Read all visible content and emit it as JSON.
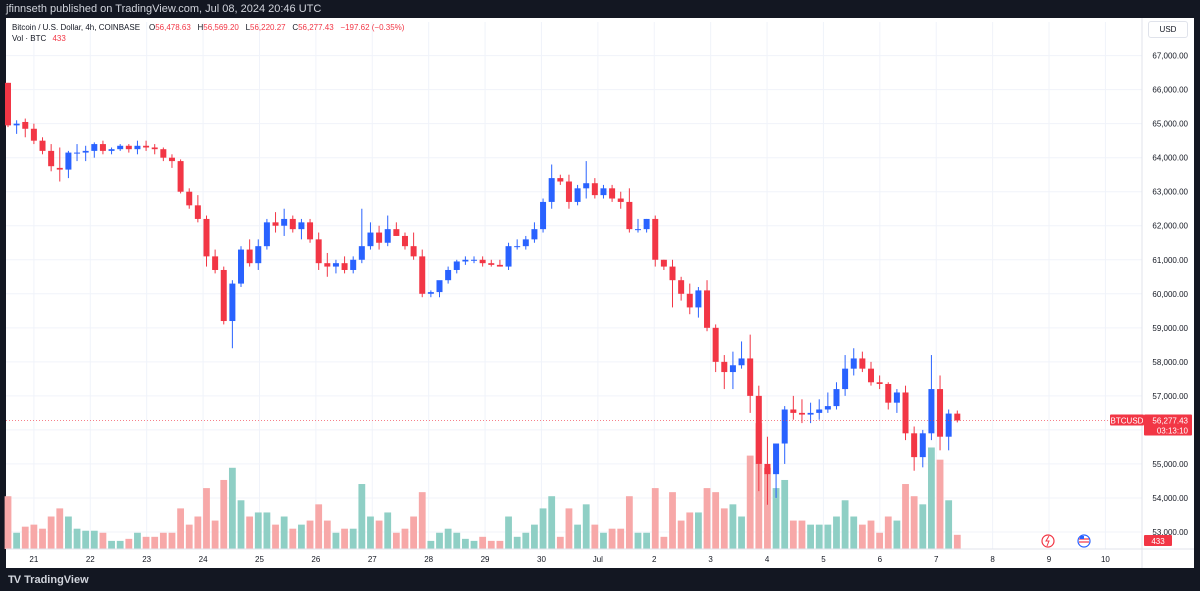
{
  "header": {
    "published_text": "jfinnseth published on TradingView.com, Jul 08, 2024 20:46 UTC"
  },
  "legend": {
    "symbol_text": "Bitcoin / U.S. Dollar, 4h, COINBASE",
    "o_label": "O",
    "o_value": "56,478.63",
    "h_label": "H",
    "h_value": "56,569.20",
    "l_label": "L",
    "l_value": "56,220.27",
    "c_label": "C",
    "c_value": "56,277.43",
    "change": "−197.62 (−0.35%)",
    "vol_label": "Vol · BTC",
    "vol_value": "433"
  },
  "currency_button": "USD",
  "price_tag": {
    "symbol": "BTCUSD",
    "price": "56,277.43",
    "countdown": "03:13:10",
    "volume": "433"
  },
  "footer": {
    "brand": "TradingView",
    "logo_glyph": "TV"
  },
  "colors": {
    "up": "#2962ff",
    "down": "#f23645",
    "vol_up": "#8fcfc5",
    "vol_down": "#f7a8a8",
    "grid": "#f0f3fa",
    "background": "#ffffff"
  },
  "chart_data": {
    "type": "candlestick",
    "interval": "4h",
    "x_tick_labels": [
      "21",
      "22",
      "23",
      "24",
      "25",
      "26",
      "27",
      "28",
      "29",
      "30",
      "Jul",
      "2",
      "3",
      "4",
      "5",
      "6",
      "7",
      "8",
      "9",
      "10"
    ],
    "y_tick_labels": [
      "53,000.00",
      "54,000.00",
      "55,000.00",
      "56,000.00",
      "57,000.00",
      "58,000.00",
      "59,000.00",
      "60,000.00",
      "61,000.00",
      "62,000.00",
      "63,000.00",
      "64,000.00",
      "65,000.00",
      "66,000.00",
      "67,000.00"
    ],
    "y_range": [
      52500,
      67400
    ],
    "last_price": 56277.43,
    "candles": [
      [
        66200,
        66200,
        64900,
        64950
      ],
      [
        64950,
        65100,
        64700,
        65000
      ],
      [
        65050,
        65150,
        64600,
        64850
      ],
      [
        64850,
        65000,
        64400,
        64500
      ],
      [
        64500,
        64600,
        64100,
        64200
      ],
      [
        64200,
        64400,
        63600,
        63750
      ],
      [
        63700,
        64300,
        63300,
        63650
      ],
      [
        63650,
        64200,
        63400,
        64150
      ],
      [
        64150,
        64400,
        63900,
        64150
      ],
      [
        64150,
        64350,
        63900,
        64200
      ],
      [
        64200,
        64450,
        64000,
        64400
      ],
      [
        64400,
        64500,
        64100,
        64200
      ],
      [
        64200,
        64300,
        64100,
        64250
      ],
      [
        64250,
        64400,
        64200,
        64350
      ],
      [
        64350,
        64400,
        64150,
        64250
      ],
      [
        64250,
        64500,
        64100,
        64350
      ],
      [
        64350,
        64500,
        64200,
        64300
      ],
      [
        64300,
        64400,
        64100,
        64250
      ],
      [
        64250,
        64300,
        63900,
        64000
      ],
      [
        64000,
        64100,
        63700,
        63900
      ],
      [
        63900,
        63950,
        62950,
        63000
      ],
      [
        63000,
        63100,
        62500,
        62600
      ],
      [
        62600,
        62900,
        62100,
        62200
      ],
      [
        62200,
        62300,
        60800,
        61100
      ],
      [
        61100,
        61300,
        60600,
        60700
      ],
      [
        60700,
        60800,
        59100,
        59200
      ],
      [
        59200,
        60400,
        58400,
        60300
      ],
      [
        60300,
        61400,
        60200,
        61300
      ],
      [
        61300,
        61600,
        60800,
        60900
      ],
      [
        60900,
        61600,
        60700,
        61400
      ],
      [
        61400,
        62200,
        61300,
        62100
      ],
      [
        62100,
        62400,
        61800,
        62000
      ],
      [
        62000,
        62500,
        61700,
        62200
      ],
      [
        62200,
        62300,
        61800,
        61900
      ],
      [
        61900,
        62200,
        61600,
        62100
      ],
      [
        62100,
        62200,
        61500,
        61600
      ],
      [
        61600,
        61800,
        60700,
        60900
      ],
      [
        60900,
        61200,
        60500,
        60800
      ],
      [
        60800,
        61000,
        60600,
        60900
      ],
      [
        60900,
        61100,
        60600,
        60700
      ],
      [
        60700,
        61100,
        60600,
        61000
      ],
      [
        61000,
        62500,
        60900,
        61400
      ],
      [
        61400,
        62100,
        61300,
        61800
      ],
      [
        61800,
        62000,
        61300,
        61500
      ],
      [
        61500,
        62300,
        61400,
        61900
      ],
      [
        61900,
        62100,
        61700,
        61700
      ],
      [
        61700,
        61800,
        61300,
        61400
      ],
      [
        61400,
        61800,
        61000,
        61100
      ],
      [
        61100,
        61300,
        59900,
        60000
      ],
      [
        60000,
        60100,
        59900,
        60050
      ],
      [
        60050,
        60300,
        59900,
        60400
      ],
      [
        60400,
        60800,
        60300,
        60700
      ],
      [
        60700,
        61000,
        60600,
        60950
      ],
      [
        60950,
        61100,
        60850,
        61000
      ],
      [
        61000,
        61100,
        60900,
        61000
      ],
      [
        61000,
        61100,
        60800,
        60900
      ],
      [
        60900,
        61000,
        60800,
        60850
      ],
      [
        60850,
        61000,
        60800,
        60800
      ],
      [
        60800,
        61500,
        60700,
        61400
      ],
      [
        61400,
        61600,
        61300,
        61400
      ],
      [
        61400,
        61700,
        61300,
        61600
      ],
      [
        61600,
        62100,
        61500,
        61900
      ],
      [
        61900,
        62800,
        61800,
        62700
      ],
      [
        62700,
        63800,
        62500,
        63400
      ],
      [
        63400,
        63500,
        63200,
        63300
      ],
      [
        63300,
        63500,
        62500,
        62700
      ],
      [
        62700,
        63200,
        62600,
        63100
      ],
      [
        63100,
        63900,
        62800,
        63250
      ],
      [
        63250,
        63400,
        62800,
        62900
      ],
      [
        62900,
        63200,
        62800,
        63100
      ],
      [
        63100,
        63200,
        62700,
        62800
      ],
      [
        62800,
        63000,
        62500,
        62700
      ],
      [
        62700,
        63100,
        61800,
        61900
      ],
      [
        61900,
        62200,
        61800,
        61900
      ],
      [
        61900,
        62200,
        61800,
        62200
      ],
      [
        62200,
        62300,
        60800,
        61000
      ],
      [
        61000,
        61000,
        60700,
        60800
      ],
      [
        60800,
        61000,
        59600,
        60400
      ],
      [
        60400,
        60500,
        59800,
        60000
      ],
      [
        60000,
        60300,
        59400,
        59600
      ],
      [
        59600,
        60200,
        59300,
        60100
      ],
      [
        60100,
        60400,
        58900,
        59000
      ],
      [
        59000,
        59100,
        57700,
        58000
      ],
      [
        58000,
        58200,
        57200,
        57700
      ],
      [
        57700,
        58300,
        57200,
        57900
      ],
      [
        57900,
        58600,
        57800,
        58100
      ],
      [
        58100,
        58800,
        56500,
        57000
      ],
      [
        57000,
        57300,
        54200,
        55000
      ],
      [
        55000,
        55800,
        53800,
        54700
      ],
      [
        54700,
        55500,
        54000,
        55600
      ],
      [
        55600,
        56700,
        55000,
        56600
      ],
      [
        56600,
        57000,
        56300,
        56500
      ],
      [
        56500,
        56900,
        56200,
        56450
      ],
      [
        56450,
        56800,
        56200,
        56500
      ],
      [
        56500,
        56900,
        56300,
        56600
      ],
      [
        56600,
        57100,
        56500,
        56700
      ],
      [
        56700,
        57400,
        56600,
        57200
      ],
      [
        57200,
        58200,
        57000,
        57800
      ],
      [
        57800,
        58400,
        57600,
        58100
      ],
      [
        58100,
        58300,
        57700,
        57800
      ],
      [
        57800,
        58000,
        57300,
        57400
      ],
      [
        57400,
        57600,
        57200,
        57350
      ],
      [
        57350,
        57400,
        56600,
        56800
      ],
      [
        56800,
        57200,
        56500,
        57100
      ],
      [
        57100,
        57300,
        55700,
        55900
      ],
      [
        55900,
        56100,
        54800,
        55200
      ],
      [
        55200,
        56000,
        54900,
        55900
      ],
      [
        55900,
        58200,
        55700,
        57200
      ],
      [
        57200,
        57600,
        55400,
        55800
      ],
      [
        55800,
        56600,
        55400,
        56480
      ],
      [
        56478.63,
        56569.2,
        56220.27,
        56277.43
      ]
    ],
    "volume_max_label": "433"
  }
}
